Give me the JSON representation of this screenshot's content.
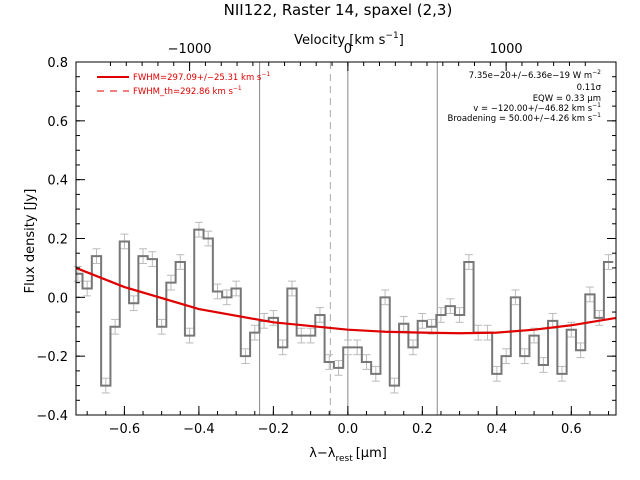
{
  "chart_data": {
    "type": "line",
    "title": "NII122, Raster 14, spaxel (2,3)",
    "xlabel": "λ−λ",
    "xlabel_sub": "rest",
    "xlabel_unit": "[μm]",
    "ylabel": "Flux density [Jy]",
    "top_xlabel": "Velocity [km s",
    "top_xlabel_sup": "−1",
    "top_xlabel_end": "]",
    "xlim": [
      -0.73,
      0.72
    ],
    "ylim": [
      -0.4,
      0.8
    ],
    "x_ticks": [
      -0.6,
      -0.4,
      -0.2,
      0.0,
      0.2,
      0.4,
      0.6
    ],
    "x_tick_labels": [
      "−0.6",
      "−0.4",
      "−0.2",
      "0.0",
      "0.2",
      "0.4",
      "0.6"
    ],
    "y_ticks": [
      -0.4,
      -0.2,
      0.0,
      0.2,
      0.4,
      0.6,
      0.8
    ],
    "y_tick_labels": [
      "−0.4",
      "−0.2",
      "0.0",
      "0.2",
      "0.4",
      "0.6",
      "0.8"
    ],
    "top_ticks": [
      -1000,
      0,
      1000
    ],
    "top_tick_labels": [
      "−1000",
      "0",
      "1000"
    ],
    "top_tick_positions_um": [
      -0.425,
      0.0,
      0.425
    ],
    "vertical_lines_solid": [
      -0.237,
      0.0,
      0.24
    ],
    "vertical_line_dashed": -0.047,
    "series": [
      {
        "name": "FWHM=297.09+/−25.31 km s",
        "sup": "−1",
        "style": "solid",
        "color": "#e00000",
        "x": [
          -0.73,
          -0.6,
          -0.4,
          -0.2,
          0.0,
          0.1,
          0.2,
          0.3,
          0.4,
          0.5,
          0.6,
          0.72
        ],
        "y": [
          0.1,
          0.035,
          -0.04,
          -0.085,
          -0.11,
          -0.117,
          -0.12,
          -0.122,
          -0.12,
          -0.11,
          -0.095,
          -0.07
        ]
      },
      {
        "name": "FWHM_th=292.86 km s",
        "sup": "−1",
        "style": "dashed",
        "color": "#e00000"
      },
      {
        "name": "spectrum",
        "style": "histogram",
        "color": "#777777",
        "x": [
          -0.725,
          -0.7,
          -0.675,
          -0.65,
          -0.625,
          -0.6,
          -0.575,
          -0.55,
          -0.525,
          -0.5,
          -0.475,
          -0.45,
          -0.425,
          -0.4,
          -0.375,
          -0.35,
          -0.325,
          -0.3,
          -0.275,
          -0.25,
          -0.225,
          -0.2,
          -0.175,
          -0.15,
          -0.125,
          -0.1,
          -0.075,
          -0.05,
          -0.025,
          0.0,
          0.025,
          0.05,
          0.075,
          0.1,
          0.125,
          0.15,
          0.175,
          0.2,
          0.225,
          0.25,
          0.275,
          0.3,
          0.325,
          0.35,
          0.375,
          0.4,
          0.425,
          0.45,
          0.475,
          0.5,
          0.525,
          0.55,
          0.575,
          0.6,
          0.625,
          0.65,
          0.675,
          0.7
        ],
        "y": [
          0.08,
          0.03,
          0.14,
          -0.3,
          -0.1,
          0.19,
          -0.02,
          0.14,
          0.13,
          -0.1,
          0.05,
          0.12,
          -0.13,
          0.23,
          0.2,
          0.02,
          0.0,
          0.03,
          -0.2,
          -0.12,
          -0.08,
          -0.07,
          -0.17,
          0.03,
          -0.13,
          -0.13,
          -0.06,
          -0.22,
          -0.24,
          -0.17,
          -0.17,
          -0.22,
          -0.26,
          -0.0,
          -0.3,
          -0.09,
          -0.17,
          -0.08,
          -0.1,
          -0.06,
          -0.03,
          -0.06,
          0.12,
          -0.12,
          -0.12,
          -0.26,
          -0.2,
          0.0,
          -0.2,
          -0.13,
          -0.23,
          -0.08,
          -0.26,
          -0.11,
          -0.18,
          0.01,
          -0.07,
          0.12
        ],
        "err": 0.025
      }
    ],
    "annotations": [
      {
        "text": "7.35e−20+/−6.36e−19 W m",
        "sup": "−2"
      },
      {
        "text": "0.11σ"
      },
      {
        "text": "EQW = 0.33 μm"
      },
      {
        "text": "v = −120.00+/−46.82 km s",
        "sup": "−1"
      },
      {
        "text": "Broadening = 50.00+/−4.26 km s",
        "sup": "−1"
      }
    ]
  }
}
